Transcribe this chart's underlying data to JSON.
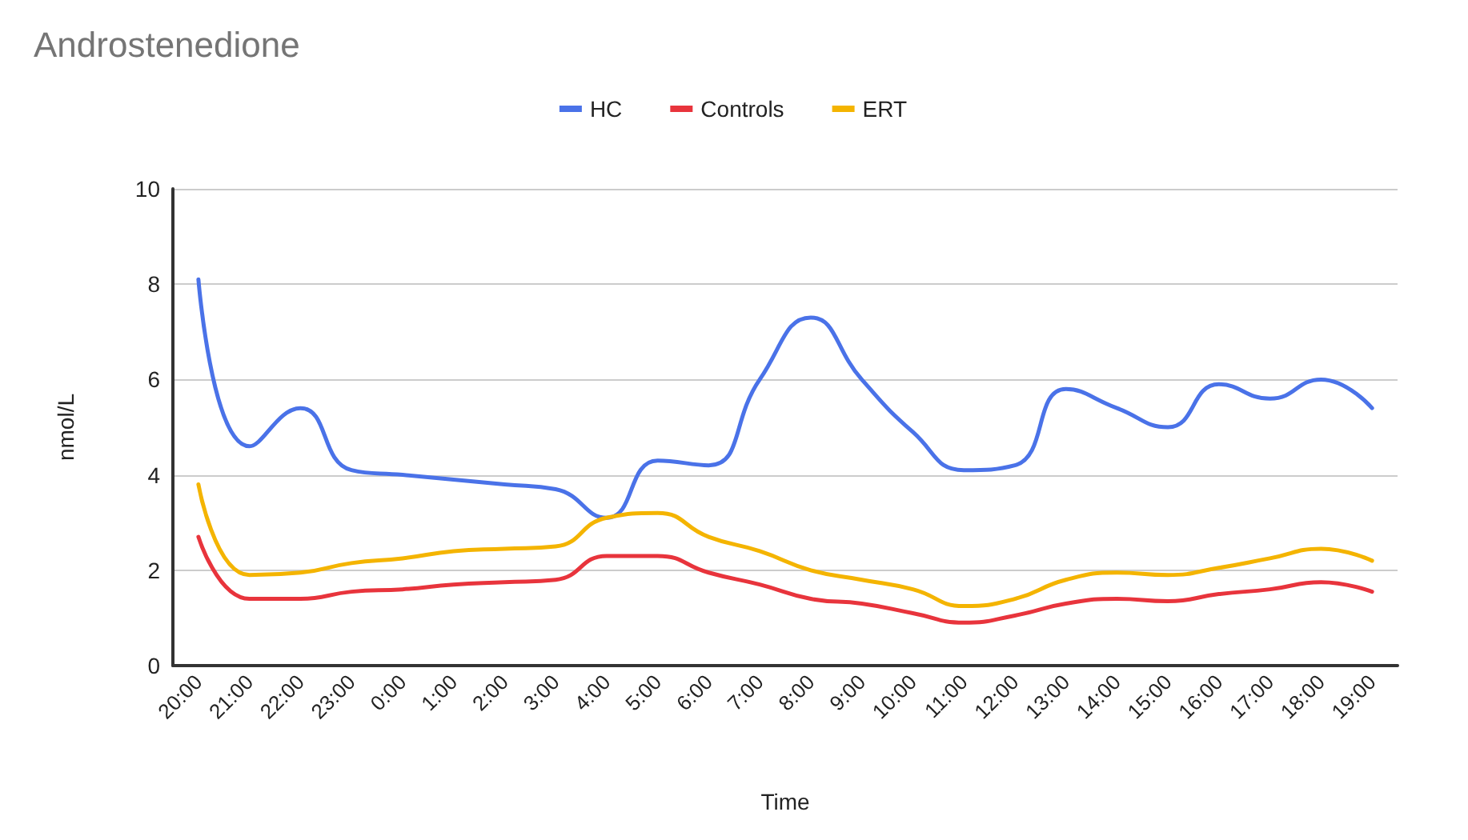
{
  "chart_data": {
    "type": "line",
    "title": "Androstenedione",
    "xlabel": "Time",
    "ylabel": "nmol/L",
    "categories": [
      "20:00",
      "21:00",
      "22:00",
      "23:00",
      "0:00",
      "1:00",
      "2:00",
      "3:00",
      "4:00",
      "5:00",
      "6:00",
      "7:00",
      "8:00",
      "9:00",
      "10:00",
      "11:00",
      "12:00",
      "13:00",
      "14:00",
      "15:00",
      "16:00",
      "17:00",
      "18:00",
      "19:00"
    ],
    "series": [
      {
        "name": "HC",
        "color": "#4a72e8",
        "values": [
          8.1,
          4.6,
          5.4,
          4.1,
          4.0,
          3.9,
          3.8,
          3.7,
          3.1,
          4.3,
          4.2,
          6.0,
          7.3,
          6.0,
          4.9,
          4.1,
          4.2,
          5.8,
          5.4,
          5.0,
          5.9,
          5.6,
          6.0,
          5.4
        ]
      },
      {
        "name": "Controls",
        "color": "#e8343c",
        "values": [
          2.7,
          1.4,
          1.4,
          1.55,
          1.6,
          1.7,
          1.75,
          1.8,
          2.3,
          2.3,
          1.95,
          1.7,
          1.4,
          1.3,
          1.1,
          0.9,
          1.05,
          1.3,
          1.4,
          1.35,
          1.5,
          1.6,
          1.75,
          1.55
        ]
      },
      {
        "name": "ERT",
        "color": "#f4b400",
        "values": [
          3.8,
          1.9,
          1.95,
          2.15,
          2.25,
          2.4,
          2.45,
          2.5,
          3.1,
          3.2,
          2.7,
          2.4,
          2.0,
          1.8,
          1.6,
          1.25,
          1.4,
          1.8,
          1.95,
          1.9,
          2.05,
          2.25,
          2.45,
          2.2
        ]
      }
    ],
    "ylim": [
      0,
      10
    ],
    "yticks": [
      0,
      2,
      4,
      6,
      8,
      10
    ],
    "grid": "y",
    "legend": "top",
    "marker": "none",
    "line_style": "solid"
  }
}
